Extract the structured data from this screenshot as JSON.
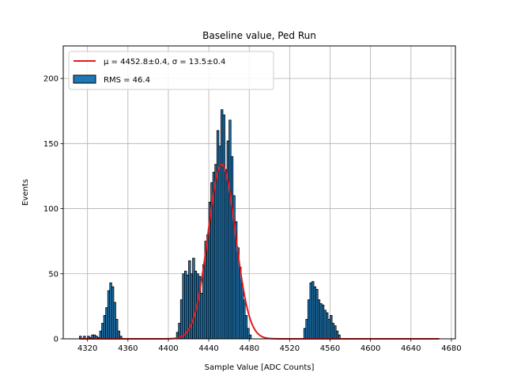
{
  "chart_data": {
    "type": "bar",
    "title": "Baseline value, Ped Run",
    "xlabel": "Sample Value [ADC Counts]",
    "ylabel": "Events",
    "xlim": [
      4296,
      4684
    ],
    "ylim": [
      0,
      225
    ],
    "xticks": [
      4320,
      4360,
      4400,
      4440,
      4480,
      4520,
      4560,
      4600,
      4640,
      4680
    ],
    "yticks": [
      0,
      50,
      100,
      150,
      200
    ],
    "grid": true,
    "legend_position": "top-left",
    "bin_width": 2,
    "histogram": {
      "name": "RMS = 46.4",
      "color": "#1f77b4",
      "edgecolor": "#000000",
      "bins": [
        [
          4312,
          2
        ],
        [
          4316,
          2
        ],
        [
          4320,
          2
        ],
        [
          4322,
          1
        ],
        [
          4324,
          3
        ],
        [
          4326,
          3
        ],
        [
          4328,
          2
        ],
        [
          4330,
          1
        ],
        [
          4332,
          6
        ],
        [
          4334,
          12
        ],
        [
          4336,
          18
        ],
        [
          4338,
          24
        ],
        [
          4340,
          37
        ],
        [
          4342,
          43
        ],
        [
          4344,
          40
        ],
        [
          4346,
          28
        ],
        [
          4348,
          15
        ],
        [
          4350,
          6
        ],
        [
          4352,
          2
        ],
        [
          4408,
          5
        ],
        [
          4410,
          12
        ],
        [
          4412,
          30
        ],
        [
          4414,
          50
        ],
        [
          4416,
          52
        ],
        [
          4418,
          49
        ],
        [
          4420,
          60
        ],
        [
          4422,
          50
        ],
        [
          4424,
          62
        ],
        [
          4426,
          52
        ],
        [
          4428,
          50
        ],
        [
          4430,
          48
        ],
        [
          4432,
          35
        ],
        [
          4434,
          57
        ],
        [
          4436,
          75
        ],
        [
          4438,
          80
        ],
        [
          4440,
          105
        ],
        [
          4442,
          120
        ],
        [
          4444,
          128
        ],
        [
          4446,
          134
        ],
        [
          4448,
          160
        ],
        [
          4450,
          148
        ],
        [
          4452,
          176
        ],
        [
          4454,
          172
        ],
        [
          4456,
          130
        ],
        [
          4458,
          152
        ],
        [
          4460,
          168
        ],
        [
          4462,
          140
        ],
        [
          4464,
          110
        ],
        [
          4466,
          90
        ],
        [
          4468,
          70
        ],
        [
          4470,
          55
        ],
        [
          4472,
          42
        ],
        [
          4474,
          30
        ],
        [
          4476,
          18
        ],
        [
          4478,
          8
        ],
        [
          4480,
          3
        ],
        [
          4534,
          8
        ],
        [
          4536,
          15
        ],
        [
          4538,
          30
        ],
        [
          4540,
          43
        ],
        [
          4542,
          44
        ],
        [
          4544,
          40
        ],
        [
          4546,
          38
        ],
        [
          4548,
          30
        ],
        [
          4550,
          27
        ],
        [
          4552,
          26
        ],
        [
          4554,
          22
        ],
        [
          4556,
          20
        ],
        [
          4558,
          15
        ],
        [
          4560,
          18
        ],
        [
          4562,
          12
        ],
        [
          4564,
          10
        ],
        [
          4566,
          6
        ],
        [
          4568,
          3
        ]
      ]
    },
    "fit": {
      "name": "$\\mu=4452.8\\pm0.4$, $\\sigma=13.5\\pm0.4$",
      "legend_text": "μ = 4452.8±0.4, σ = 13.5±0.4",
      "type": "gaussian",
      "mu": 4452.8,
      "sigma": 13.5,
      "amplitude": 134,
      "x_range": [
        4312,
        4668
      ],
      "color": "#e31a1c"
    },
    "grid_color": "#b0b0b0"
  }
}
